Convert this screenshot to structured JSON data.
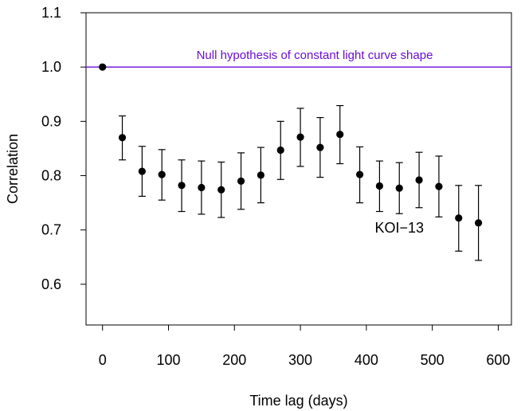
{
  "chart_data": {
    "type": "scatter",
    "title": "",
    "xlabel": "Time lag (days)",
    "ylabel": "Correlation",
    "xlim": [
      -25,
      620
    ],
    "ylim": [
      0.525,
      1.1
    ],
    "x_ticks": [
      0,
      100,
      200,
      300,
      400,
      500,
      600
    ],
    "y_ticks": [
      0.6,
      0.7,
      0.8,
      0.9,
      1.0,
      1.1
    ],
    "y_tick_labels": [
      "0.6",
      "0.7",
      "0.8",
      "0.9",
      "1.0",
      "1.1"
    ],
    "grid": false,
    "reference_line": {
      "y": 1.0,
      "label": "Null hypothesis of constant light curve shape",
      "color": "#6a0dd8"
    },
    "annotation": {
      "text": "KOI−13",
      "x": 450,
      "y": 0.695
    },
    "point_color": "#000000",
    "series": [
      {
        "x": [
          0,
          30,
          60,
          90,
          120,
          150,
          180,
          210,
          240,
          270,
          300,
          330,
          360,
          390,
          420,
          450,
          480,
          510,
          540,
          570
        ],
        "y": [
          1.0,
          0.87,
          0.808,
          0.802,
          0.782,
          0.778,
          0.774,
          0.79,
          0.801,
          0.847,
          0.871,
          0.852,
          0.876,
          0.802,
          0.781,
          0.777,
          0.792,
          0.78,
          0.722,
          0.713
        ],
        "err_low": [
          null,
          0.829,
          0.762,
          0.755,
          0.734,
          0.729,
          0.723,
          0.738,
          0.75,
          0.793,
          0.817,
          0.797,
          0.822,
          0.75,
          0.734,
          0.73,
          0.741,
          0.724,
          0.661,
          0.644
        ],
        "err_high": [
          null,
          0.91,
          0.854,
          0.848,
          0.829,
          0.827,
          0.825,
          0.842,
          0.852,
          0.9,
          0.924,
          0.907,
          0.929,
          0.853,
          0.827,
          0.824,
          0.843,
          0.836,
          0.782,
          0.782
        ]
      }
    ]
  }
}
